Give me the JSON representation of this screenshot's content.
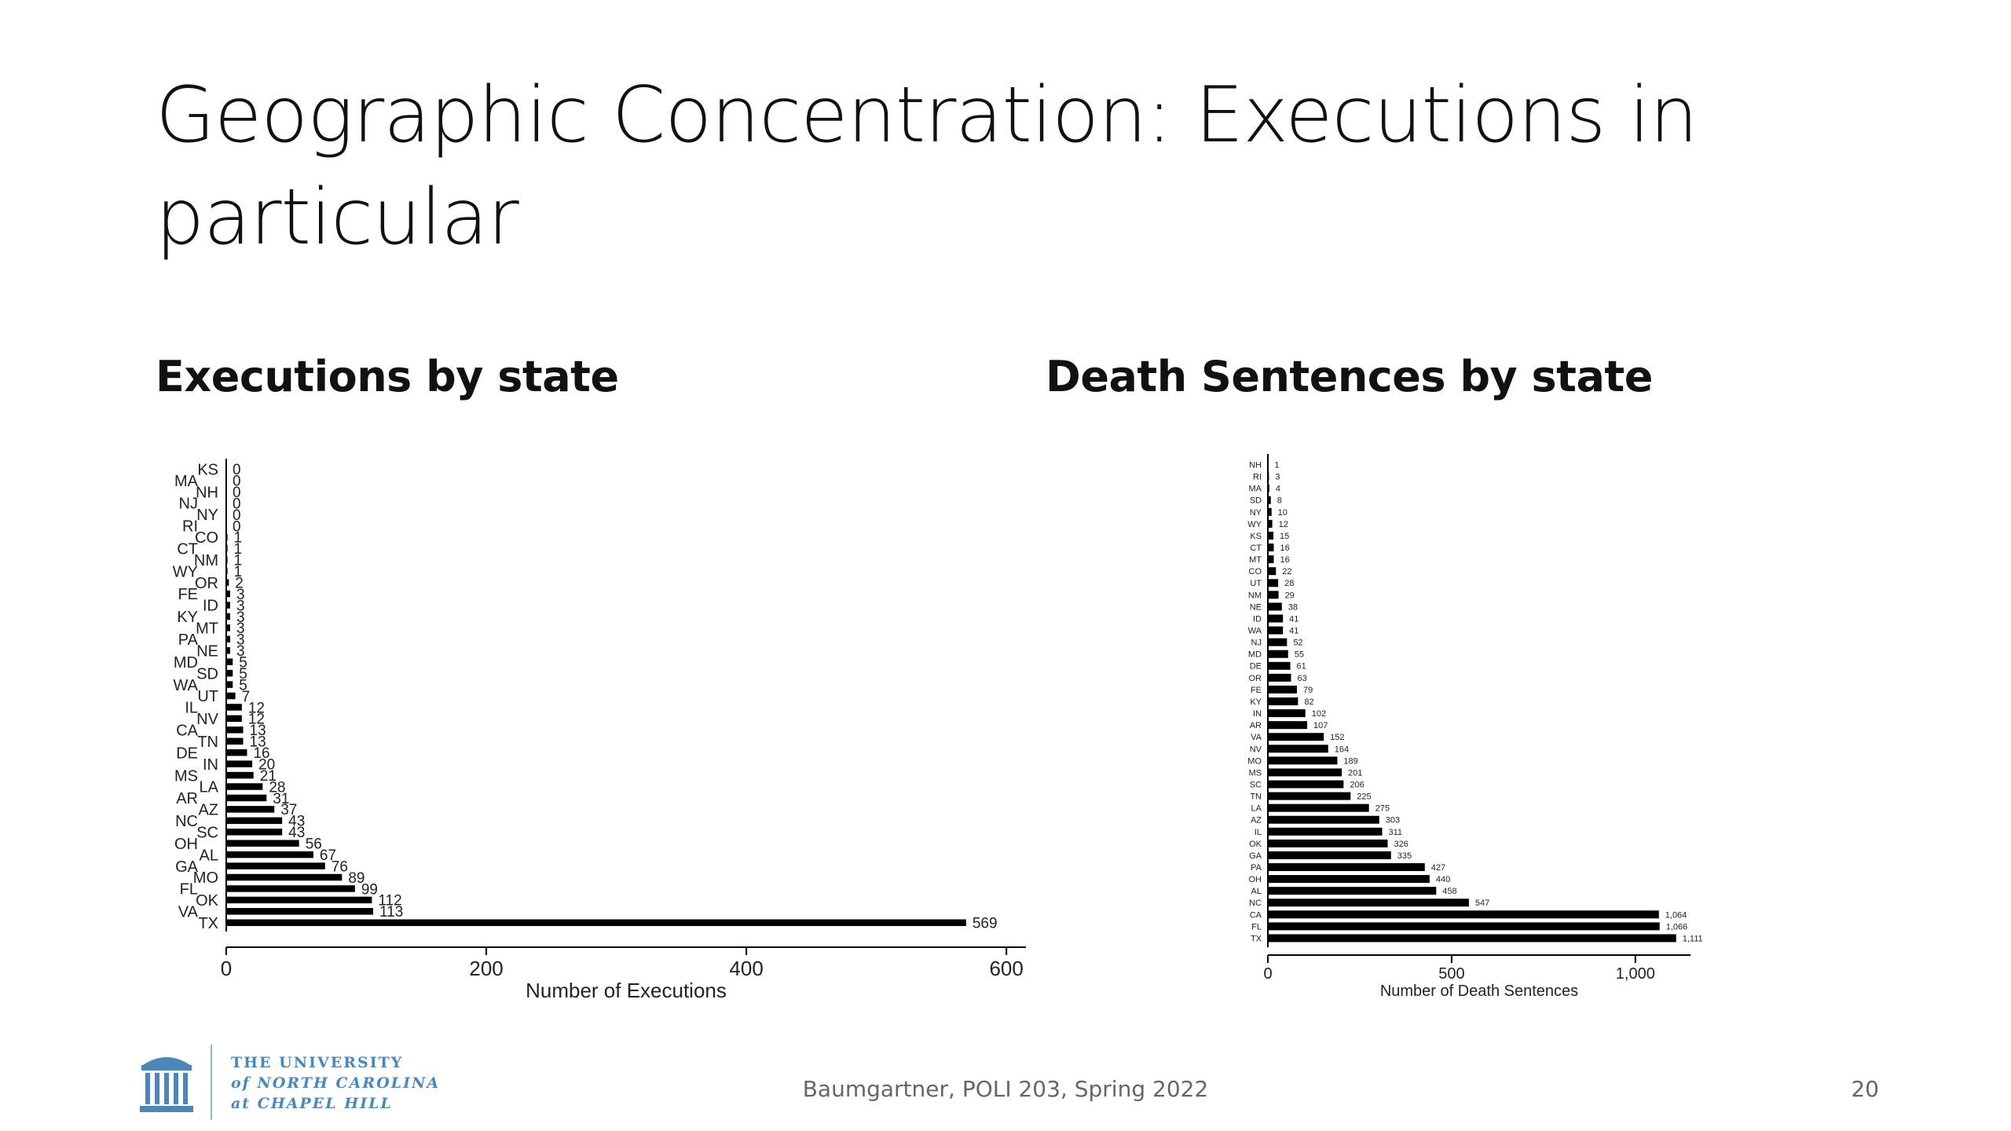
{
  "slide": {
    "title": "Geographic Concentration: Executions in particular",
    "footer": "Baumgartner, POLI 203, Spring 2022",
    "page_number": "20"
  },
  "logo": {
    "line1": "THE UNIVERSITY",
    "line2": "of NORTH CAROLINA",
    "line3": "at CHAPEL HILL",
    "color": "#4b87b9"
  },
  "chart_data": [
    {
      "type": "bar",
      "orientation": "horizontal",
      "title": "Executions by state",
      "xlabel": "Number of Executions",
      "ylabel": "",
      "xlim": [
        0,
        615
      ],
      "xticks": [
        0,
        200,
        400,
        600
      ],
      "xtick_labels": [
        "0",
        "200",
        "400",
        "600"
      ],
      "grid": false,
      "categories": [
        "KS",
        "MA",
        "NH",
        "NJ",
        "NY",
        "RI",
        "CO",
        "CT",
        "NM",
        "WY",
        "OR",
        "FE",
        "ID",
        "KY",
        "MT",
        "PA",
        "NE",
        "MD",
        "SD",
        "WA",
        "UT",
        "IL",
        "NV",
        "CA",
        "TN",
        "DE",
        "IN",
        "MS",
        "LA",
        "AR",
        "AZ",
        "NC",
        "SC",
        "OH",
        "AL",
        "GA",
        "MO",
        "FL",
        "OK",
        "VA",
        "TX"
      ],
      "values": [
        0,
        0,
        0,
        0,
        0,
        0,
        1,
        1,
        1,
        1,
        2,
        3,
        3,
        3,
        3,
        3,
        3,
        5,
        5,
        5,
        7,
        12,
        12,
        13,
        13,
        16,
        20,
        21,
        28,
        31,
        37,
        43,
        43,
        56,
        67,
        76,
        89,
        99,
        112,
        113,
        569
      ],
      "value_labels": [
        "0",
        "0",
        "0",
        "0",
        "0",
        "0",
        "1",
        "1",
        "1",
        "1",
        "2",
        "3",
        "3",
        "3",
        "3",
        "3",
        "3",
        "5",
        "5",
        "5",
        "7",
        "12",
        "12",
        "13",
        "13",
        "16",
        "20",
        "21",
        "28",
        "31",
        "37",
        "43",
        "43",
        "56",
        "67",
        "76",
        "89",
        "99",
        "112",
        "113",
        "569"
      ]
    },
    {
      "type": "bar",
      "orientation": "horizontal",
      "title": "Death Sentences by state",
      "xlabel": "Number of Death Sentences",
      "ylabel": "",
      "xlim": [
        0,
        1150
      ],
      "xticks": [
        0,
        500,
        1000
      ],
      "xtick_labels": [
        "0",
        "500",
        "1,000"
      ],
      "grid": false,
      "categories": [
        "NH",
        "RI",
        "MA",
        "SD",
        "NY",
        "WY",
        "KS",
        "CT",
        "MT",
        "CO",
        "UT",
        "NM",
        "NE",
        "ID",
        "WA",
        "NJ",
        "MD",
        "DE",
        "OR",
        "FE",
        "KY",
        "IN",
        "AR",
        "VA",
        "NV",
        "MO",
        "MS",
        "SC",
        "TN",
        "LA",
        "AZ",
        "IL",
        "OK",
        "GA",
        "PA",
        "OH",
        "AL",
        "NC",
        "CA",
        "FL",
        "TX"
      ],
      "values": [
        1,
        3,
        4,
        8,
        10,
        12,
        15,
        16,
        16,
        22,
        28,
        29,
        38,
        41,
        41,
        52,
        55,
        61,
        63,
        79,
        82,
        102,
        107,
        152,
        164,
        189,
        201,
        206,
        225,
        275,
        303,
        311,
        326,
        335,
        427,
        440,
        458,
        547,
        1064,
        1066,
        1111
      ],
      "value_labels": [
        "1",
        "3",
        "4",
        "8",
        "10",
        "12",
        "15",
        "16",
        "16",
        "22",
        "28",
        "29",
        "38",
        "41",
        "41",
        "52",
        "55",
        "61",
        "63",
        "79",
        "82",
        "102",
        "107",
        "152",
        "164",
        "189",
        "201",
        "206",
        "225",
        "275",
        "303",
        "311",
        "326",
        "335",
        "427",
        "440",
        "458",
        "547",
        "1,064",
        "1,066",
        "1,111"
      ]
    }
  ]
}
